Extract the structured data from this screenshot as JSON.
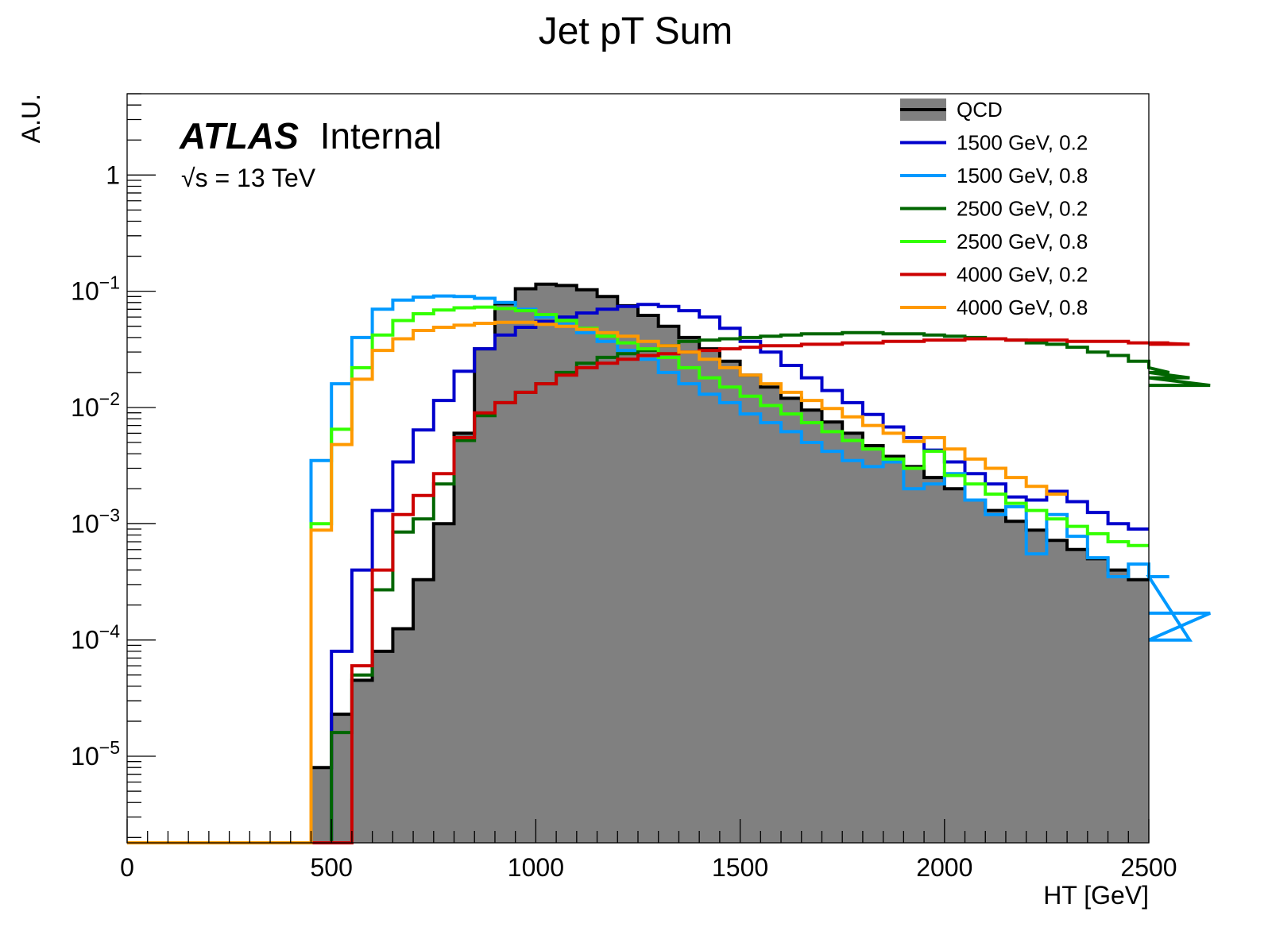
{
  "chart_data": {
    "type": "line",
    "title": "Jet pT Sum",
    "xlabel": "HT [GeV]",
    "ylabel": "A.U.",
    "xlim": [
      0,
      2500
    ],
    "ylim": [
      1.8e-06,
      5
    ],
    "yscale": "log",
    "bin_width": 50,
    "bin_start": 450,
    "grid": false,
    "legend_position": "top-right",
    "annotations": {
      "atlas": "ATLAS",
      "atlas_status": "Internal",
      "energy": "√s = 13 TeV"
    },
    "x_ticks": [
      {
        "value": 0,
        "label": "0"
      },
      {
        "value": 500,
        "label": "500"
      },
      {
        "value": 1000,
        "label": "1000"
      },
      {
        "value": 1500,
        "label": "1500"
      },
      {
        "value": 2000,
        "label": "2000"
      },
      {
        "value": 2500,
        "label": "2500"
      }
    ],
    "y_ticks": [
      {
        "exp": 0,
        "base": "1",
        "sup": ""
      },
      {
        "exp": -1,
        "base": "10",
        "sup": "−1"
      },
      {
        "exp": -2,
        "base": "10",
        "sup": "−2"
      },
      {
        "exp": -3,
        "base": "10",
        "sup": "−3"
      },
      {
        "exp": -4,
        "base": "10",
        "sup": "−4"
      },
      {
        "exp": -5,
        "base": "10",
        "sup": "−5"
      }
    ],
    "series": [
      {
        "name": "QCD",
        "style": "filled",
        "color": "#000000",
        "fill": "#808080",
        "values": [
          8e-06,
          2.3e-05,
          4.5e-05,
          8e-05,
          0.000125,
          0.00033,
          0.001,
          0.006,
          0.032,
          0.078,
          0.105,
          0.115,
          0.112,
          0.103,
          0.09,
          0.075,
          0.062,
          0.05,
          0.04,
          0.032,
          0.025,
          0.019,
          0.015,
          0.012,
          0.0095,
          0.0075,
          0.006,
          0.0047,
          0.0038,
          0.0031,
          0.0025,
          0.002,
          0.0016,
          0.0013,
          0.00105,
          0.00088,
          0.00072,
          0.0006,
          0.0005,
          0.0004,
          0.00033
        ]
      },
      {
        "name": "1500 GeV, 0.2",
        "style": "line",
        "color": "#0000cc",
        "values": [
          null,
          8e-05,
          0.0004,
          0.0013,
          0.0034,
          0.0064,
          0.0115,
          0.0205,
          0.032,
          0.042,
          0.049,
          0.055,
          0.06,
          0.065,
          0.07,
          0.074,
          0.077,
          0.074,
          0.068,
          0.06,
          0.048,
          0.037,
          0.03,
          0.023,
          0.018,
          0.014,
          0.011,
          0.0087,
          0.0068,
          0.0055,
          0.0043,
          0.0034,
          0.0027,
          0.0022,
          0.0017,
          0.0016,
          0.0019,
          0.00155,
          0.00125,
          0.001,
          0.0009
        ]
      },
      {
        "name": "1500 GeV, 0.8",
        "style": "line",
        "color": "#0099ff",
        "values": [
          0.0035,
          0.016,
          0.04,
          0.07,
          0.084,
          0.089,
          0.091,
          0.09,
          0.087,
          0.08,
          0.07,
          0.06,
          0.052,
          0.044,
          0.037,
          0.031,
          0.026,
          0.02,
          0.016,
          0.013,
          0.011,
          0.0088,
          0.0074,
          0.0062,
          0.005,
          0.0042,
          0.0035,
          0.0031,
          0.0034,
          0.002,
          0.0022,
          0.0027,
          0.0016,
          0.0012,
          0.0014,
          0.00055,
          0.0012,
          0.00078,
          0.00051,
          0.00035,
          0.00045,
          0.00035,
          0.00035,
          0.0001,
          0.00017
        ]
      },
      {
        "name": "2500 GeV, 0.2",
        "style": "line",
        "color": "#006600",
        "values": [
          null,
          1.6e-05,
          5e-05,
          0.00027,
          0.00085,
          0.0011,
          0.0022,
          0.0052,
          0.0085,
          0.011,
          0.0135,
          0.016,
          0.02,
          0.024,
          0.027,
          0.029,
          0.031,
          0.034,
          0.037,
          0.038,
          0.039,
          0.04,
          0.041,
          0.042,
          0.043,
          0.043,
          0.044,
          0.044,
          0.043,
          0.043,
          0.042,
          0.041,
          0.04,
          0.039,
          0.038,
          0.036,
          0.035,
          0.033,
          0.03,
          0.028,
          0.025,
          0.022,
          0.02,
          0.018,
          0.0155
        ]
      },
      {
        "name": "2500 GeV, 0.8",
        "style": "line",
        "color": "#33ff00",
        "values": [
          0.001,
          0.0065,
          0.022,
          0.042,
          0.056,
          0.064,
          0.069,
          0.072,
          0.073,
          0.071,
          0.068,
          0.063,
          0.056,
          0.048,
          0.041,
          0.036,
          0.032,
          0.027,
          0.022,
          0.018,
          0.015,
          0.0125,
          0.0104,
          0.0088,
          0.0074,
          0.0062,
          0.0052,
          0.0044,
          0.0036,
          0.003,
          0.0042,
          0.0026,
          0.0022,
          0.0018,
          0.0015,
          0.0013,
          0.0011,
          0.00095,
          0.00082,
          0.0007,
          0.00065
        ]
      },
      {
        "name": "4000 GeV, 0.2",
        "style": "line",
        "color": "#cc0000",
        "values": [
          null,
          null,
          6e-05,
          0.0004,
          0.0012,
          0.00175,
          0.0027,
          0.0055,
          0.009,
          0.011,
          0.0135,
          0.016,
          0.019,
          0.022,
          0.024,
          0.026,
          0.028,
          0.029,
          0.03,
          0.031,
          0.032,
          0.033,
          0.034,
          0.034,
          0.035,
          0.035,
          0.036,
          0.036,
          0.037,
          0.037,
          0.038,
          0.038,
          0.039,
          0.039,
          0.038,
          0.038,
          0.038,
          0.037,
          0.037,
          0.037,
          0.036,
          0.036,
          0.036,
          0.035
        ]
      },
      {
        "name": "4000 GeV, 0.8",
        "style": "line",
        "color": "#ff9900",
        "values": [
          0.00088,
          0.0048,
          0.0175,
          0.031,
          0.039,
          0.046,
          0.049,
          0.051,
          0.053,
          0.054,
          0.054,
          0.052,
          0.05,
          0.047,
          0.044,
          0.041,
          0.037,
          0.034,
          0.03,
          0.026,
          0.022,
          0.019,
          0.016,
          0.0135,
          0.0115,
          0.0098,
          0.0083,
          0.007,
          0.006,
          0.0051,
          0.0055,
          0.0044,
          0.0036,
          0.003,
          0.0025,
          0.0021,
          0.0018
        ]
      }
    ]
  }
}
